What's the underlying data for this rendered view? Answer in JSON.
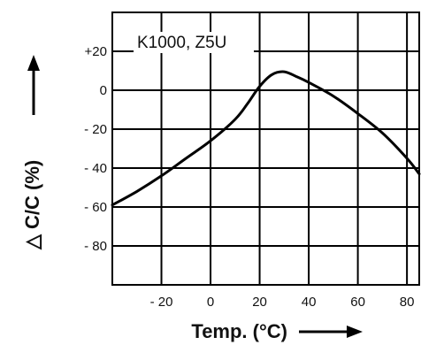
{
  "chart_data": {
    "type": "line",
    "title": "",
    "xlabel": "Temp. (°C)",
    "ylabel": "△ C/C (%)",
    "xlim": [
      -40,
      85
    ],
    "ylim": [
      -100,
      40
    ],
    "x_ticks": [
      -20,
      0,
      20,
      40,
      60,
      80
    ],
    "x_tick_labels": [
      "- 20",
      "0",
      "20",
      "40",
      "60",
      "80"
    ],
    "y_ticks": [
      20,
      0,
      -20,
      -40,
      -60,
      -80
    ],
    "y_tick_labels": [
      "+20",
      "0",
      "- 20",
      "- 40",
      "- 60",
      "- 80"
    ],
    "grid": true,
    "legend_position": "top-left",
    "series": [
      {
        "name": "K1000, Z5U",
        "x": [
          -40,
          -30,
          -20,
          -10,
          0,
          10,
          15,
          20,
          25,
          30,
          35,
          40,
          50,
          60,
          70,
          80,
          85
        ],
        "y": [
          -59,
          -52,
          -44,
          -35,
          -26,
          -15,
          -7,
          2,
          8,
          9.5,
          7,
          4,
          -3,
          -12,
          -22,
          -35,
          -43
        ]
      }
    ],
    "line_color": "#000000"
  }
}
